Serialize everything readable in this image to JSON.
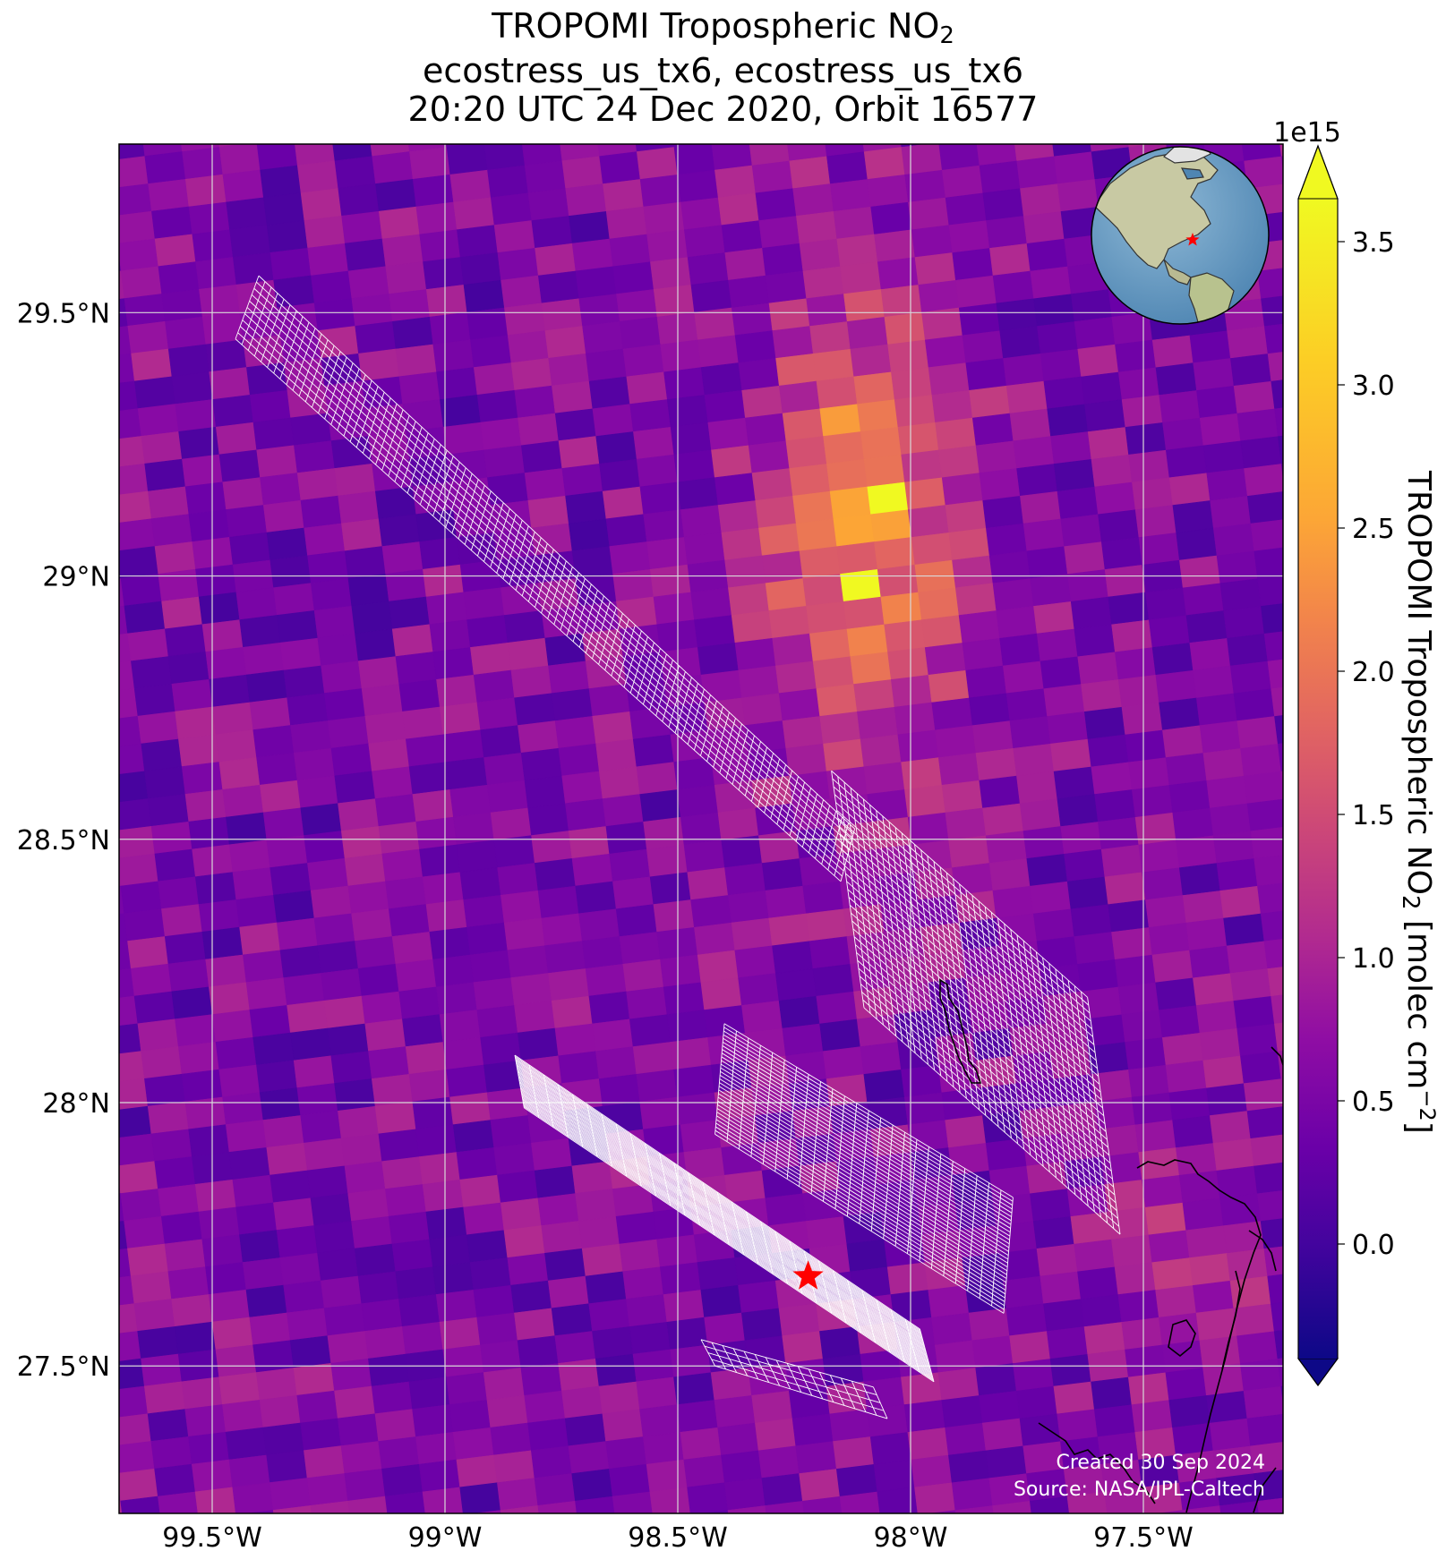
{
  "title": {
    "line1_prefix": "TROPOMI Tropospheric NO",
    "line1_sub": "2",
    "line2": "ecostress_us_tx6, ecostress_us_tx6",
    "line3": "20:20 UTC 24 Dec 2020, Orbit 16577"
  },
  "chart_data": {
    "type": "heatmap",
    "projection": "PlateCarree",
    "cmap": "plasma",
    "extent": {
      "lon_min": -99.7,
      "lon_max": -97.2,
      "lat_min": 27.22,
      "lat_max": 29.82
    },
    "lon_ticks": [
      -99.5,
      -99.0,
      -98.5,
      -98.0,
      -97.5
    ],
    "lon_tick_labels": [
      "99.5°W",
      "99°W",
      "98.5°W",
      "98°W",
      "97.5°W"
    ],
    "lat_ticks": [
      29.5,
      29.0,
      28.5,
      28.0,
      27.5
    ],
    "lat_tick_labels": [
      "29.5°N",
      "29°N",
      "28.5°N",
      "28°N",
      "27.5°N"
    ],
    "grid": true,
    "colorbar": {
      "label_prefix": "TROPOMI Tropospheric NO",
      "label_sub": "2",
      "label_suffix": " [molec cm",
      "label_sup": "−2",
      "label_end": "]",
      "multiplier": "1e15",
      "vmin": -0.4,
      "vmax": 3.65,
      "ticks": [
        0.0,
        0.5,
        1.0,
        1.5,
        2.0,
        2.5,
        3.0,
        3.5
      ],
      "tick_labels": [
        "0.0",
        "0.5",
        "1.0",
        "1.5",
        "2.0",
        "2.5",
        "3.0",
        "3.5"
      ],
      "extend": "both"
    },
    "hotspot": {
      "description_value_range": [
        2.5,
        3.5
      ],
      "lon_range": [
        -98.45,
        -97.75
      ],
      "lat_range": [
        28.5,
        29.45
      ]
    },
    "target_marker": {
      "lon": -98.22,
      "lat": 27.67,
      "color": "#ff0000",
      "symbol": "star"
    },
    "overlays": [
      {
        "name": "ecostress_us_tx6",
        "corners": [
          [
            -99.4,
            29.57
          ],
          [
            -99.45,
            29.45
          ],
          [
            -98.15,
            28.42
          ],
          [
            -98.12,
            28.52
          ]
        ]
      },
      {
        "name": "ecostress_us_tx6",
        "corners": [
          [
            -98.17,
            28.63
          ],
          [
            -98.1,
            28.18
          ],
          [
            -97.55,
            27.75
          ],
          [
            -97.62,
            28.2
          ]
        ]
      }
    ],
    "credits": [
      "Created 30 Sep 2024",
      "Source: NASA/JPL-Caltech"
    ]
  },
  "inset": {
    "name": "globe",
    "marker_color": "#ff0000"
  }
}
